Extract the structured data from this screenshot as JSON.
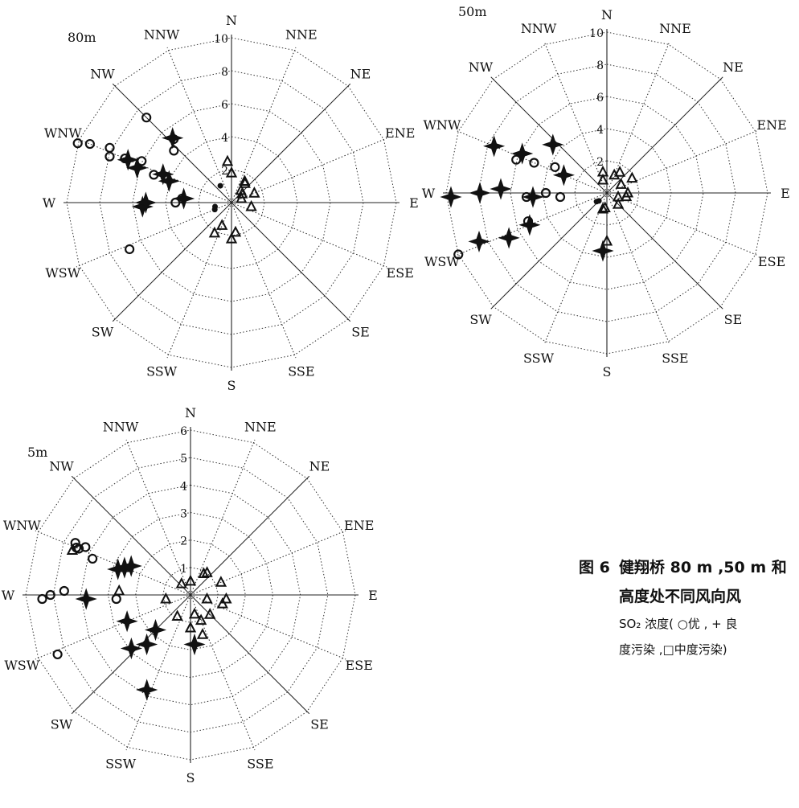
{
  "chart_data": [
    {
      "type": "polar-scatter",
      "height_label": "80m",
      "r_max": 10,
      "ring_labels": [
        "2",
        "4",
        "6",
        "8",
        "10"
      ],
      "directions": [
        "N",
        "NNE",
        "NE",
        "ENE",
        "E",
        "ESE",
        "SE",
        "SSE",
        "S",
        "SSW",
        "SW",
        "WSW",
        "W",
        "WNW",
        "NW",
        "NNW"
      ],
      "series": [
        {
          "name": "优",
          "marker": "circle",
          "points": [
            {
              "dir": "WNW",
              "r": 10.0
            },
            {
              "dir": "WNW",
              "r": 9.3
            },
            {
              "dir": "WNW",
              "r": 8.1
            },
            {
              "dir": "WNW",
              "r": 7.9
            },
            {
              "dir": "WNW",
              "r": 7.0
            },
            {
              "dir": "WNW",
              "r": 6.0
            },
            {
              "dir": "WNW",
              "r": 5.0
            },
            {
              "dir": "NW",
              "r": 7.3
            },
            {
              "dir": "NW",
              "r": 5.2
            },
            {
              "dir": "NW",
              "r": 4.7
            },
            {
              "dir": "W",
              "r": 3.4
            },
            {
              "dir": "W",
              "r": 3.0
            },
            {
              "dir": "WSW",
              "r": 6.8
            }
          ]
        },
        {
          "name": "良",
          "marker": "plus",
          "points": [
            {
              "dir": "WNW",
              "r": 6.1
            },
            {
              "dir": "WNW",
              "r": 4.5
            },
            {
              "dir": "NW",
              "r": 5.3
            },
            {
              "dir": "W",
              "r": 5.4
            },
            {
              "dir": "W",
              "r": 5.2
            },
            {
              "dir": "W",
              "r": 2.9
            },
            {
              "dir": "WNW",
              "r": 4.0
            },
            {
              "dir": "WNW",
              "r": 6.8
            }
          ]
        },
        {
          "name": "中度污染",
          "marker": "triangle",
          "points": [
            {
              "dir": "N",
              "r": 2.5
            },
            {
              "dir": "N",
              "r": 1.8
            },
            {
              "dir": "NNE",
              "r": 1.5
            },
            {
              "dir": "NE",
              "r": 1.4
            },
            {
              "dir": "ENE",
              "r": 1.5
            },
            {
              "dir": "E",
              "r": 1.2
            },
            {
              "dir": "ENE",
              "r": 0.8
            },
            {
              "dir": "S",
              "r": 2.2
            },
            {
              "dir": "SSW",
              "r": 2.1
            },
            {
              "dir": "S",
              "r": 1.8
            },
            {
              "dir": "SSW",
              "r": 1.5
            },
            {
              "dir": "NNE",
              "r": 0.9
            },
            {
              "dir": "E",
              "r": 0.6
            }
          ]
        },
        {
          "name": "轻度污染",
          "marker": "dot",
          "points": [
            {
              "dir": "W",
              "r": 1.0
            },
            {
              "dir": "WSW",
              "r": 1.1
            },
            {
              "dir": "NW",
              "r": 1.2
            }
          ]
        }
      ]
    },
    {
      "type": "polar-scatter",
      "height_label": "50m",
      "r_max": 10,
      "ring_labels": [
        "2",
        "4",
        "6",
        "8",
        "10"
      ],
      "directions": [
        "N",
        "NNE",
        "NE",
        "ENE",
        "E",
        "ESE",
        "SE",
        "SSE",
        "S",
        "SSW",
        "SW",
        "WSW",
        "W",
        "WNW",
        "NW",
        "NNW"
      ],
      "series": [
        {
          "name": "优",
          "marker": "circle",
          "points": [
            {
              "dir": "WNW",
              "r": 6.0
            },
            {
              "dir": "WNW",
              "r": 4.9
            },
            {
              "dir": "WNW",
              "r": 3.6
            },
            {
              "dir": "W",
              "r": 2.9
            },
            {
              "dir": "W",
              "r": 3.8
            },
            {
              "dir": "WSW",
              "r": 5.2
            },
            {
              "dir": "W",
              "r": 5.0
            },
            {
              "dir": "WSW",
              "r": 10.0
            }
          ]
        },
        {
          "name": "良",
          "marker": "plus",
          "points": [
            {
              "dir": "W",
              "r": 9.7
            },
            {
              "dir": "W",
              "r": 7.9
            },
            {
              "dir": "W",
              "r": 6.6
            },
            {
              "dir": "W",
              "r": 4.6
            },
            {
              "dir": "WNW",
              "r": 7.6
            },
            {
              "dir": "WNW",
              "r": 5.8
            },
            {
              "dir": "NW",
              "r": 4.5
            },
            {
              "dir": "WNW",
              "r": 2.9
            },
            {
              "dir": "WSW",
              "r": 8.5
            },
            {
              "dir": "WSW",
              "r": 6.7
            },
            {
              "dir": "WSW",
              "r": 5.2
            },
            {
              "dir": "S",
              "r": 3.6
            }
          ]
        },
        {
          "name": "中度污染",
          "marker": "triangle",
          "points": [
            {
              "dir": "N",
              "r": 1.3
            },
            {
              "dir": "NNE",
              "r": 1.2
            },
            {
              "dir": "NE",
              "r": 1.0
            },
            {
              "dir": "ENE",
              "r": 1.8
            },
            {
              "dir": "E",
              "r": 1.3
            },
            {
              "dir": "E",
              "r": 0.7
            },
            {
              "dir": "ESE",
              "r": 1.2
            },
            {
              "dir": "SE",
              "r": 1.0
            },
            {
              "dir": "S",
              "r": 1.0
            },
            {
              "dir": "SSW",
              "r": 0.9
            },
            {
              "dir": "S",
              "r": 3.0
            },
            {
              "dir": "NNE",
              "r": 1.5
            },
            {
              "dir": "N",
              "r": 0.8
            }
          ]
        },
        {
          "name": "轻度污染",
          "marker": "dot",
          "points": [
            {
              "dir": "WSW",
              "r": 0.8
            },
            {
              "dir": "SW",
              "r": 0.7
            }
          ]
        }
      ]
    },
    {
      "type": "polar-scatter",
      "height_label": "5m",
      "r_max": 6,
      "ring_labels": [
        "1",
        "2",
        "3",
        "4",
        "5",
        "6"
      ],
      "directions": [
        "N",
        "NNE",
        "NE",
        "ENE",
        "E",
        "ESE",
        "SE",
        "SSE",
        "S",
        "SSW",
        "SW",
        "WSW",
        "W",
        "WNW",
        "NW",
        "NNW"
      ],
      "series": [
        {
          "name": "优",
          "marker": "circle",
          "points": [
            {
              "dir": "W",
              "r": 5.4
            },
            {
              "dir": "W",
              "r": 5.1
            },
            {
              "dir": "W",
              "r": 4.6
            },
            {
              "dir": "WSW",
              "r": 5.3
            },
            {
              "dir": "WNW",
              "r": 4.5
            },
            {
              "dir": "WNW",
              "r": 4.2
            },
            {
              "dir": "WNW",
              "r": 3.8
            },
            {
              "dir": "WNW",
              "r": 4.4
            },
            {
              "dir": "WNW",
              "r": 4.6
            },
            {
              "dir": "W",
              "r": 2.7
            }
          ]
        },
        {
          "name": "良",
          "marker": "plus",
          "points": [
            {
              "dir": "W",
              "r": 3.8
            },
            {
              "dir": "WNW",
              "r": 2.6
            },
            {
              "dir": "WNW",
              "r": 2.4
            },
            {
              "dir": "WNW",
              "r": 2.8
            },
            {
              "dir": "WSW",
              "r": 2.5
            },
            {
              "dir": "SW",
              "r": 2.9
            },
            {
              "dir": "SW",
              "r": 2.4
            },
            {
              "dir": "SW",
              "r": 1.8
            },
            {
              "dir": "SSW",
              "r": 3.8
            },
            {
              "dir": "S",
              "r": 1.8
            }
          ]
        },
        {
          "name": "中度污染",
          "marker": "triangle",
          "points": [
            {
              "dir": "WNW",
              "r": 4.6
            },
            {
              "dir": "WNW",
              "r": 2.6
            },
            {
              "dir": "W",
              "r": 2.6
            },
            {
              "dir": "W",
              "r": 0.9
            },
            {
              "dir": "N",
              "r": 0.5
            },
            {
              "dir": "NNE",
              "r": 0.9
            },
            {
              "dir": "NE",
              "r": 1.0
            },
            {
              "dir": "ENE",
              "r": 1.2
            },
            {
              "dir": "E",
              "r": 1.3
            },
            {
              "dir": "ESE",
              "r": 1.2
            },
            {
              "dir": "SE",
              "r": 1.0
            },
            {
              "dir": "SSE",
              "r": 1.5
            },
            {
              "dir": "S",
              "r": 0.7
            },
            {
              "dir": "S",
              "r": 1.2
            },
            {
              "dir": "SSW",
              "r": 0.9
            },
            {
              "dir": "NNW",
              "r": 0.5
            },
            {
              "dir": "SSE",
              "r": 1.0
            },
            {
              "dir": "E",
              "r": 0.6
            }
          ]
        }
      ]
    }
  ],
  "caption": {
    "figure_no": "图 6",
    "line1": "健翔桥 80 m ,50 m 和",
    "line2": "高度处不同风向风",
    "line3": "SO₂ 浓度( ○优 , + 良",
    "line4": "度污染 ,□中度污染)"
  }
}
